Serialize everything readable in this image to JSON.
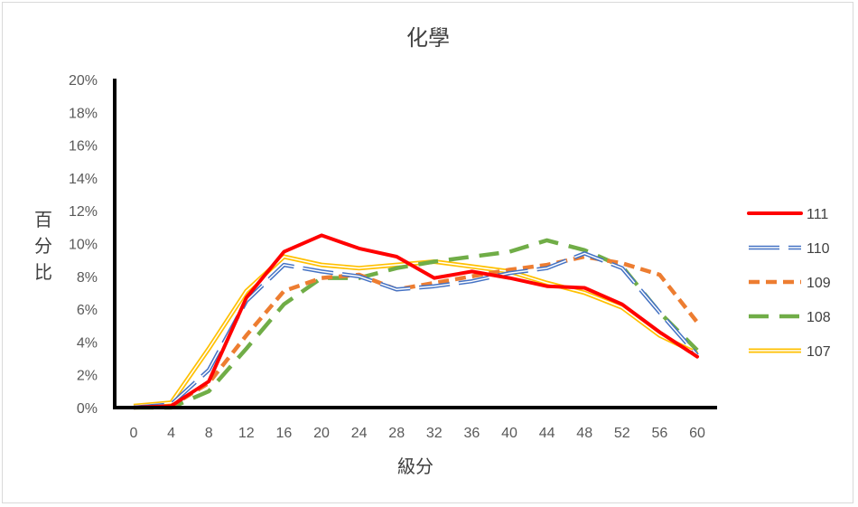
{
  "chart_data": {
    "type": "line",
    "title": "化學",
    "xlabel": "級分",
    "ylabel": "百分比",
    "x": [
      0,
      4,
      8,
      12,
      16,
      20,
      24,
      28,
      32,
      36,
      40,
      44,
      48,
      52,
      56,
      60
    ],
    "ylim": [
      0,
      20
    ],
    "yticks": [
      0,
      2,
      4,
      6,
      8,
      10,
      12,
      14,
      16,
      18,
      20
    ],
    "ytick_labels": [
      "0%",
      "2%",
      "4%",
      "6%",
      "8%",
      "10%",
      "12%",
      "14%",
      "16%",
      "18%",
      "20%"
    ],
    "grid": false,
    "legend_position": "right",
    "series": [
      {
        "name": "111",
        "color": "#ff0000",
        "style": "solid",
        "values": [
          0.0,
          0.1,
          1.6,
          6.7,
          9.5,
          10.5,
          9.7,
          9.2,
          7.9,
          8.3,
          7.9,
          7.4,
          7.3,
          6.3,
          4.6,
          3.1
        ]
      },
      {
        "name": "110",
        "color": "#4472c4",
        "style": "double-dot",
        "values": [
          0.0,
          0.2,
          2.3,
          6.5,
          8.7,
          8.3,
          8.0,
          7.2,
          7.4,
          7.7,
          8.2,
          8.5,
          9.4,
          8.5,
          5.8,
          3.2
        ]
      },
      {
        "name": "109",
        "color": "#ed7d31",
        "style": "dash",
        "values": [
          0.0,
          0.1,
          1.5,
          4.4,
          7.1,
          7.9,
          8.1,
          7.2,
          7.6,
          8.0,
          8.4,
          8.7,
          9.2,
          8.8,
          8.1,
          5.2
        ]
      },
      {
        "name": "108",
        "color": "#70ad47",
        "style": "long-dash",
        "values": [
          0.0,
          0.0,
          1.0,
          3.6,
          6.3,
          7.9,
          7.9,
          8.5,
          8.9,
          9.2,
          9.5,
          10.2,
          9.6,
          8.6,
          5.8,
          3.5
        ]
      },
      {
        "name": "107",
        "color": "#ffc000",
        "style": "double",
        "values": [
          0.1,
          0.3,
          3.6,
          7.1,
          9.2,
          8.7,
          8.5,
          8.7,
          8.9,
          8.6,
          8.3,
          7.6,
          7.0,
          6.1,
          4.4,
          3.3
        ]
      }
    ]
  }
}
